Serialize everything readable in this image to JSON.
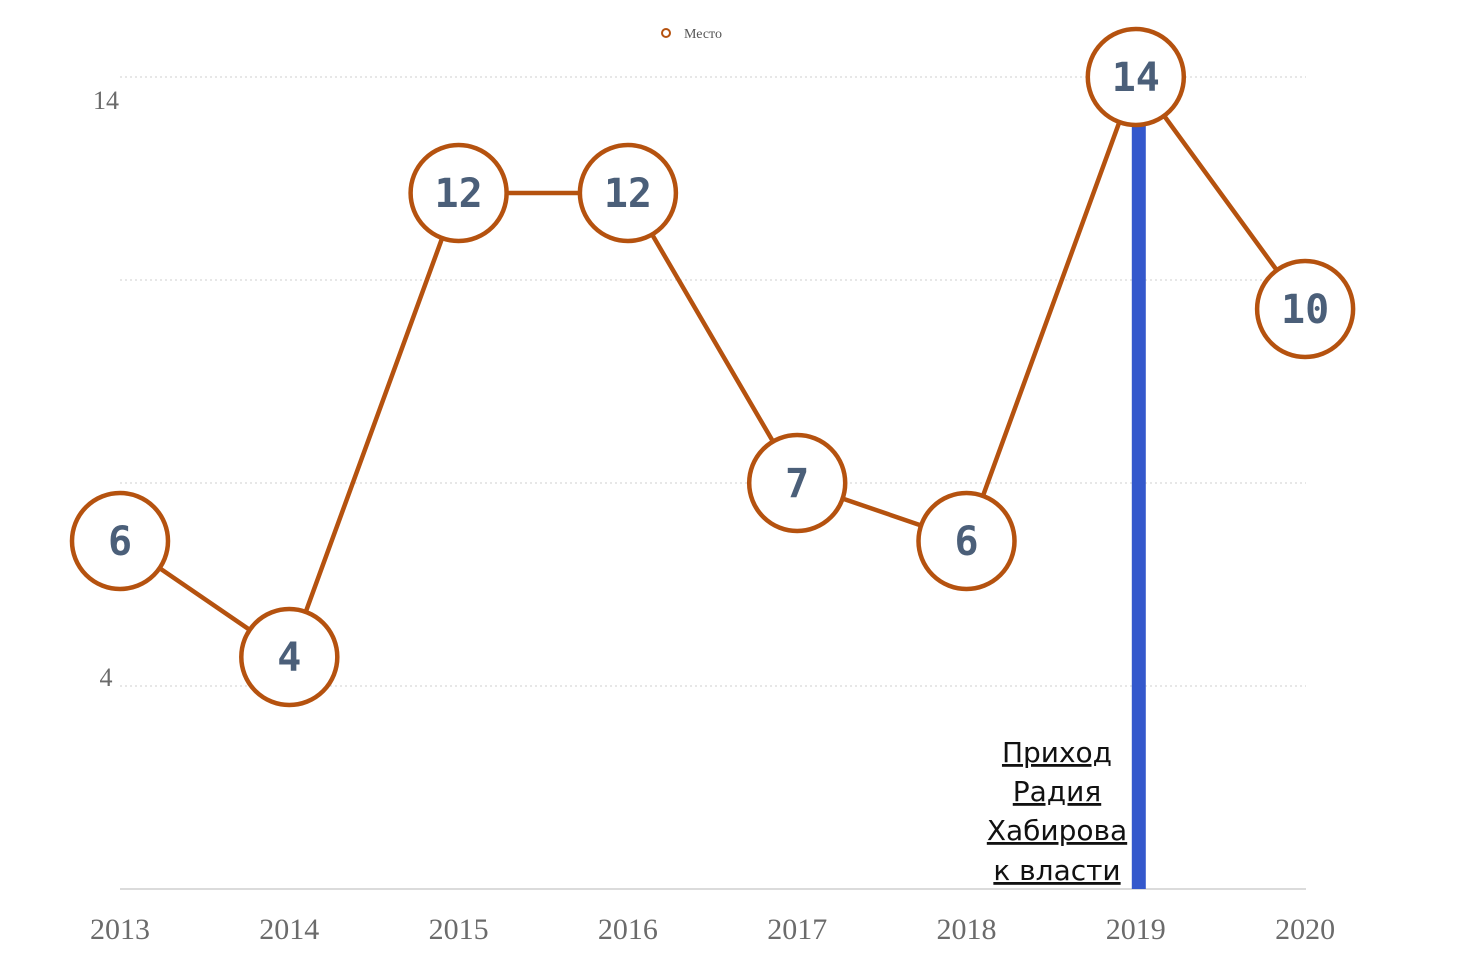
{
  "chart_data": {
    "type": "line",
    "categories": [
      "2013",
      "2014",
      "2015",
      "2016",
      "2017",
      "2018",
      "2019",
      "2020"
    ],
    "series": [
      {
        "name": "Место",
        "values": [
          6,
          4,
          12,
          12,
          7,
          6,
          14,
          10
        ],
        "color": "#b5520f"
      }
    ],
    "y_ticks": [
      "4",
      "14"
    ],
    "ylim": [
      0,
      14
    ],
    "grid": true,
    "legend": "top-center",
    "annotation": {
      "category": "2019",
      "lines": [
        "Приход",
        "Радия",
        "Хабирова",
        "к власти"
      ],
      "marker_color": "#3458cc"
    },
    "label_color": "#4b5f79"
  }
}
